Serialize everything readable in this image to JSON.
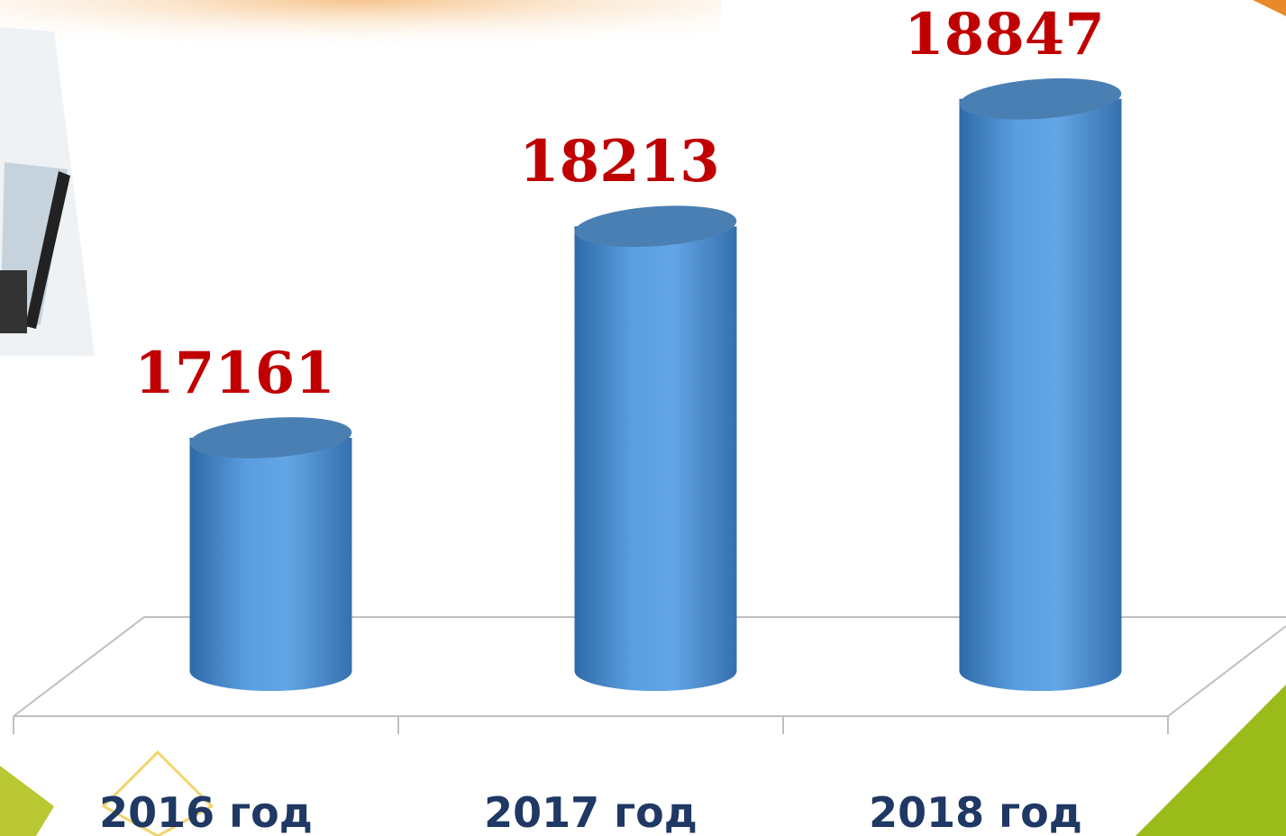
{
  "chart_data": {
    "type": "cylinder-bar",
    "categories": [
      "2016 год",
      "2017 год",
      "2018 год"
    ],
    "values": [
      17161,
      18213,
      18847
    ],
    "color": "#5b9bd5",
    "label_color": "#c00000",
    "ylim": [
      16000,
      19200
    ]
  }
}
